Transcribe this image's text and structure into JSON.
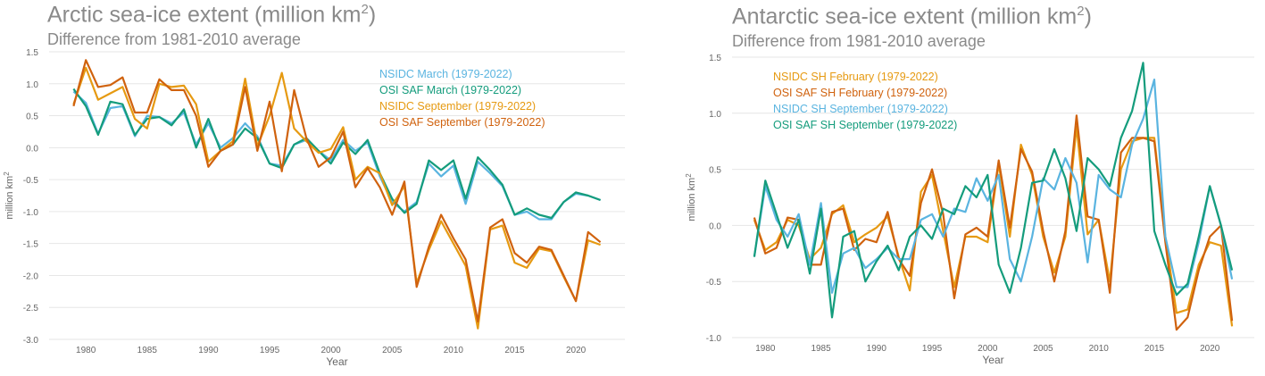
{
  "chart_data": [
    {
      "type": "line",
      "title": "Arctic sea-ice extent (million km",
      "title_sup": "2",
      "title_end": ")",
      "subtitle": "Difference from 1981-2010 average",
      "xlabel": "Year",
      "ylabel": "million km",
      "ylabel_sup": "2",
      "xlim": [
        1977,
        2024
      ],
      "ylim": [
        -3.0,
        1.5
      ],
      "xticks": [
        1980,
        1985,
        1990,
        1995,
        2000,
        2005,
        2010,
        2015,
        2020
      ],
      "yticks": [
        1.5,
        1.0,
        0.5,
        0.0,
        -0.5,
        -1.0,
        -1.5,
        -2.0,
        -2.5,
        -3.0
      ],
      "ytick_labels": [
        "1.5",
        "1.0",
        "0.5",
        "0.0",
        "-0.5",
        "-1.0",
        "-1.5",
        "-2.0",
        "-2.5",
        "-3.0"
      ],
      "grid": "horizontal",
      "legend_position": "top-right",
      "x": [
        1979,
        1980,
        1981,
        1982,
        1983,
        1984,
        1985,
        1986,
        1987,
        1988,
        1989,
        1990,
        1991,
        1992,
        1993,
        1994,
        1995,
        1996,
        1997,
        1998,
        1999,
        2000,
        2001,
        2002,
        2003,
        2004,
        2005,
        2006,
        2007,
        2008,
        2009,
        2010,
        2011,
        2012,
        2013,
        2014,
        2015,
        2016,
        2017,
        2018,
        2019,
        2020,
        2021,
        2022
      ],
      "series": [
        {
          "name": "NSIDC March (1979-2022)",
          "color": "#5ab4e0",
          "values": [
            0.88,
            0.7,
            0.22,
            0.62,
            0.65,
            0.18,
            0.5,
            0.48,
            0.38,
            0.55,
            0.05,
            0.38,
            0.0,
            0.15,
            0.38,
            0.18,
            -0.25,
            -0.28,
            0.05,
            0.12,
            -0.05,
            -0.2,
            0.12,
            -0.05,
            0.08,
            -0.45,
            -0.85,
            -1.0,
            -0.85,
            -0.25,
            -0.45,
            -0.28,
            -0.88,
            -0.22,
            -0.4,
            -0.6,
            -1.05,
            -1.0,
            -1.12,
            -1.12,
            -0.85,
            -0.72,
            -0.75,
            -0.82
          ]
        },
        {
          "name": "OSI SAF March (1979-2022)",
          "color": "#149c7c",
          "values": [
            0.92,
            0.65,
            0.2,
            0.72,
            0.68,
            0.2,
            0.45,
            0.48,
            0.35,
            0.6,
            0.0,
            0.45,
            -0.05,
            0.05,
            0.3,
            0.15,
            -0.25,
            -0.32,
            0.05,
            0.15,
            -0.05,
            -0.25,
            0.08,
            -0.1,
            0.12,
            -0.4,
            -0.8,
            -1.02,
            -0.88,
            -0.2,
            -0.35,
            -0.2,
            -0.8,
            -0.15,
            -0.35,
            -0.58,
            -1.05,
            -0.95,
            -1.05,
            -1.1,
            -0.85,
            -0.7,
            -0.75,
            -0.82
          ]
        },
        {
          "name": "NSIDC September (1979-2022)",
          "color": "#e69a12",
          "values": [
            0.68,
            1.25,
            0.75,
            0.85,
            0.95,
            0.45,
            0.3,
            1.0,
            0.95,
            0.97,
            0.68,
            -0.22,
            -0.05,
            0.1,
            1.08,
            0.02,
            0.5,
            1.17,
            0.3,
            0.1,
            -0.08,
            -0.02,
            0.32,
            -0.5,
            -0.3,
            -0.4,
            -0.9,
            -0.6,
            -2.12,
            -1.6,
            -1.15,
            -1.5,
            -1.85,
            -2.83,
            -1.28,
            -1.22,
            -1.8,
            -1.88,
            -1.58,
            -1.62,
            -2.02,
            -2.4,
            -1.45,
            -1.52
          ]
        },
        {
          "name": "OSI SAF September (1979-2022)",
          "color": "#d0620e",
          "values": [
            0.65,
            1.37,
            0.95,
            0.98,
            1.1,
            0.55,
            0.55,
            1.07,
            0.9,
            0.9,
            0.5,
            -0.3,
            -0.05,
            0.05,
            0.95,
            -0.05,
            0.72,
            -0.37,
            0.9,
            0.15,
            -0.3,
            -0.15,
            0.25,
            -0.62,
            -0.32,
            -0.62,
            -1.05,
            -0.53,
            -2.18,
            -1.55,
            -1.05,
            -1.42,
            -1.75,
            -2.72,
            -1.25,
            -1.12,
            -1.65,
            -1.8,
            -1.55,
            -1.6,
            -2.0,
            -2.4,
            -1.32,
            -1.48
          ]
        }
      ]
    },
    {
      "type": "line",
      "title": "Antarctic sea-ice extent (million km",
      "title_sup": "2",
      "title_end": ")",
      "subtitle": "Difference from 1981-2010 average",
      "xlabel": "Year",
      "ylabel": "million km",
      "ylabel_sup": "2",
      "xlim": [
        1977,
        2024
      ],
      "ylim": [
        -1.0,
        1.5
      ],
      "xticks": [
        1980,
        1985,
        1990,
        1995,
        2000,
        2005,
        2010,
        2015,
        2020
      ],
      "yticks": [
        1.5,
        1.0,
        0.5,
        0.0,
        -0.5,
        -1.0
      ],
      "ytick_labels": [
        "1.5",
        "1.0",
        "0.5",
        "0.0",
        "-0.5",
        "-1.0"
      ],
      "grid": "horizontal",
      "legend_position": "top-left",
      "x": [
        1979,
        1980,
        1981,
        1982,
        1983,
        1984,
        1985,
        1986,
        1987,
        1988,
        1989,
        1990,
        1991,
        1992,
        1993,
        1994,
        1995,
        1996,
        1997,
        1998,
        1999,
        2000,
        2001,
        2002,
        2003,
        2004,
        2005,
        2006,
        2007,
        2008,
        2009,
        2010,
        2011,
        2012,
        2013,
        2014,
        2015,
        2016,
        2017,
        2018,
        2019,
        2020,
        2021,
        2022
      ],
      "series": [
        {
          "name": "NSIDC SH February (1979-2022)",
          "color": "#e69a12",
          "values": [
            0.05,
            -0.22,
            -0.15,
            0.05,
            0.0,
            -0.3,
            -0.2,
            0.1,
            0.18,
            -0.15,
            -0.08,
            -0.02,
            0.08,
            -0.28,
            -0.58,
            0.3,
            0.45,
            -0.05,
            -0.55,
            -0.1,
            -0.1,
            -0.15,
            0.55,
            -0.1,
            0.72,
            0.45,
            -0.1,
            -0.42,
            -0.1,
            0.88,
            -0.08,
            0.05,
            -0.5,
            0.5,
            0.75,
            0.78,
            0.78,
            -0.1,
            -0.78,
            -0.75,
            -0.35,
            -0.15,
            -0.18,
            -0.9
          ]
        },
        {
          "name": "OSI SAF SH February (1979-2022)",
          "color": "#d0620e",
          "values": [
            0.07,
            -0.25,
            -0.2,
            0.07,
            0.05,
            -0.35,
            -0.35,
            0.12,
            0.15,
            -0.22,
            -0.12,
            -0.15,
            0.12,
            -0.3,
            -0.45,
            0.2,
            0.5,
            0.1,
            -0.65,
            -0.08,
            -0.02,
            -0.1,
            0.58,
            -0.02,
            0.68,
            0.48,
            -0.05,
            -0.5,
            -0.05,
            0.98,
            0.08,
            0.05,
            -0.6,
            0.65,
            0.78,
            0.78,
            0.75,
            -0.15,
            -0.93,
            -0.82,
            -0.4,
            -0.1,
            0.0,
            -0.85
          ]
        },
        {
          "name": "NSIDC SH September (1979-2022)",
          "color": "#5ab4e0",
          "values": [
            -0.28,
            0.35,
            0.05,
            -0.1,
            0.1,
            -0.35,
            0.2,
            -0.6,
            -0.25,
            -0.2,
            -0.38,
            -0.3,
            -0.2,
            -0.3,
            -0.3,
            0.05,
            0.1,
            -0.1,
            0.15,
            0.12,
            0.42,
            0.22,
            0.45,
            -0.3,
            -0.5,
            -0.1,
            0.42,
            0.32,
            0.6,
            0.38,
            -0.33,
            0.45,
            0.32,
            0.25,
            0.72,
            0.95,
            1.3,
            -0.1,
            -0.55,
            -0.55,
            -0.15,
            0.35,
            0.0,
            -0.48
          ]
        },
        {
          "name": "OSI SAF SH September (1979-2022)",
          "color": "#149c7c",
          "values": [
            -0.28,
            0.4,
            0.1,
            -0.2,
            0.05,
            -0.43,
            0.15,
            -0.82,
            -0.1,
            -0.05,
            -0.5,
            -0.32,
            -0.18,
            -0.4,
            -0.1,
            0.0,
            -0.12,
            0.15,
            0.1,
            0.35,
            0.25,
            0.45,
            -0.35,
            -0.6,
            -0.2,
            0.38,
            0.4,
            0.68,
            0.42,
            -0.05,
            0.6,
            0.5,
            0.35,
            0.78,
            1.02,
            1.45,
            -0.05,
            -0.35,
            -0.62,
            -0.52,
            -0.1,
            0.35,
            0.0,
            -0.4
          ]
        }
      ]
    }
  ]
}
